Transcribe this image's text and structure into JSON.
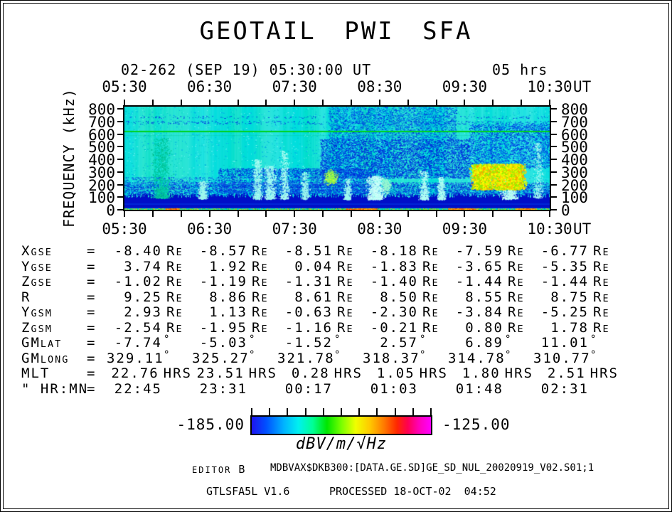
{
  "title": "GEOTAIL PWI SFA",
  "header": {
    "date_line": "02-262 (SEP 19) 05:30:00 UT",
    "duration": "05 hrs"
  },
  "axes": {
    "time_unit": "UT",
    "freq_label": "FREQUENCY (kHz)"
  },
  "colorbar": {
    "min": "-185.00",
    "max": "-125.00",
    "unit_prefix": "dBV/m/",
    "unit_radical": "√",
    "unit_sqrt": "Hz",
    "gradient": [
      [
        "#1E14F0",
        0
      ],
      [
        "#0050FF",
        8
      ],
      [
        "#00B4FF",
        18
      ],
      [
        "#00F0F0",
        26
      ],
      [
        "#00FF96",
        34
      ],
      [
        "#00E600",
        42
      ],
      [
        "#78FF00",
        50
      ],
      [
        "#F0FF00",
        58
      ],
      [
        "#FFC800",
        66
      ],
      [
        "#FF7800",
        74
      ],
      [
        "#FF2800",
        81
      ],
      [
        "#FF0050",
        87
      ],
      [
        "#FF00B4",
        93
      ],
      [
        "#FF00FF",
        100
      ]
    ]
  },
  "footer": {
    "editor_label": "EDITOR",
    "editor_value": "B",
    "file_path": "MDBVAX$DKB300:[DATA.GE.SD]GE_SD_NUL_20020919_V02.S01;1",
    "program": "GTLSFA5L V1.6",
    "processed": "PROCESSED 18-OCT-02  04:52"
  },
  "chart_data": {
    "type": "heatmap",
    "title": "GEOTAIL PWI SFA",
    "start": "02-262 (SEP 19) 05:30:00 UT",
    "span": "05 hrs",
    "x_ticks": [
      "05:30",
      "06:30",
      "07:30",
      "08:30",
      "09:30",
      "10:30"
    ],
    "x_unit": "UT",
    "x_range_hours": [
      5.5,
      10.5
    ],
    "ylabel": "FREQUENCY (kHz)",
    "y_ticks": [
      800,
      700,
      600,
      500,
      400,
      300,
      200,
      100,
      0
    ],
    "ylim": [
      0,
      816
    ],
    "colorbar_range": [
      -185.0,
      -125.0
    ],
    "colorbar_label": "dBV/m/√Hz",
    "features": [
      {
        "type": "base",
        "color": "#00DEDE"
      },
      {
        "type": "streaks",
        "green": "0,225,140",
        "light": "215,255,255"
      },
      {
        "type": "speckle",
        "t0": 5.5,
        "t1": 10.5,
        "f0": 90,
        "f1": 816,
        "density": 0.035,
        "colors": [
          "#00A8E8",
          "#70F0F0",
          "#00C8C8"
        ]
      },
      {
        "type": "speckle",
        "t0": 7.9,
        "t1": 9.4,
        "f0": 560,
        "f1": 816,
        "density": 0.42,
        "colors": [
          "#0030DC",
          "#0060F0",
          "#00A0E0"
        ]
      },
      {
        "type": "speckle",
        "t0": 5.5,
        "t1": 10.5,
        "f0": 680,
        "f1": 706,
        "density": 0.15,
        "colors": [
          "#0048E0"
        ]
      },
      {
        "type": "speckle",
        "t0": 5.5,
        "t1": 10.5,
        "f0": 726,
        "f1": 744,
        "density": 0.1,
        "colors": [
          "#0048E0"
        ]
      },
      {
        "type": "speckle",
        "t0": 5.5,
        "t1": 10.5,
        "f0": 112,
        "f1": 218,
        "density": 0.75,
        "colors": [
          "#0018CE",
          "#0022D6",
          "#0048E6",
          "#00D8D8"
        ]
      },
      {
        "type": "speckle",
        "t0": 5.5,
        "t1": 6.6,
        "f0": 180,
        "f1": 260,
        "density": 0.3,
        "colors": [
          "#0040E0",
          "#00A0E0"
        ]
      },
      {
        "type": "speckle",
        "t0": 6.6,
        "t1": 8.45,
        "f0": 130,
        "f1": 330,
        "density": 0.5,
        "colors": [
          "#0028D8",
          "#0050E8"
        ]
      },
      {
        "type": "speckle",
        "t0": 7.8,
        "t1": 9.55,
        "f0": 250,
        "f1": 560,
        "density": 0.55,
        "colors": [
          "#0022D4",
          "#004CE8"
        ]
      },
      {
        "type": "speckle",
        "t0": 9.55,
        "t1": 10.5,
        "f0": 330,
        "f1": 680,
        "density": 0.42,
        "colors": [
          "#0030DC",
          "#0060F0"
        ]
      },
      {
        "type": "darkband",
        "f0": 0,
        "f1": 112,
        "color": "#000FC8",
        "jitter": 6
      },
      {
        "type": "hline",
        "f": 45,
        "color": "rgba(0,110,255,0.5)",
        "lw": 1
      },
      {
        "type": "hline",
        "f": 140,
        "color": "rgba(0,190,255,0.3)",
        "lw": 1
      },
      {
        "type": "hline",
        "f": 165,
        "color": "rgba(120,250,255,0.3)",
        "lw": 1
      },
      {
        "type": "hline",
        "f": 205,
        "color": "rgba(140,255,255,0.33)",
        "lw": 1
      },
      {
        "type": "hline",
        "f": 243,
        "color": "rgba(140,255,255,0.25)",
        "lw": 1
      },
      {
        "type": "plume",
        "t": 5.93,
        "w": 0.1,
        "f0": 95,
        "f1": 570,
        "n": 900,
        "colors": [
          "#00C9A0",
          "#00BE8C",
          "#00D2B4"
        ]
      },
      {
        "type": "plume",
        "t": 6.42,
        "w": 0.05,
        "f0": 90,
        "f1": 230,
        "n": 300,
        "colors": [
          "#9FF8EE"
        ]
      },
      {
        "type": "plume",
        "t": 7.06,
        "w": 0.05,
        "f0": 88,
        "f1": 400,
        "n": 550,
        "colors": [
          "#B0FFF4",
          "#8CF5EC"
        ]
      },
      {
        "type": "plume",
        "t": 7.21,
        "w": 0.06,
        "f0": 88,
        "f1": 350,
        "n": 500,
        "colors": [
          "#B0FFF4",
          "#98F8F0"
        ]
      },
      {
        "type": "plume",
        "t": 7.38,
        "w": 0.05,
        "f0": 88,
        "f1": 470,
        "n": 420,
        "colors": [
          "#A8FCF2"
        ]
      },
      {
        "type": "plume",
        "t": 7.62,
        "w": 0.04,
        "f0": 88,
        "f1": 300,
        "n": 280,
        "colors": [
          "#9FF8EE"
        ]
      },
      {
        "type": "plume",
        "t": 8.12,
        "w": 0.04,
        "f0": 85,
        "f1": 250,
        "n": 280,
        "colors": [
          "#A0FAF0"
        ]
      },
      {
        "type": "plume",
        "t": 8.45,
        "w": 0.09,
        "f0": 85,
        "f1": 270,
        "n": 800,
        "colors": [
          "#B4FFF6",
          "#D0FFFA"
        ]
      },
      {
        "type": "plume",
        "t": 9.02,
        "w": 0.05,
        "f0": 85,
        "f1": 310,
        "n": 400,
        "colors": [
          "#B0FFF4"
        ]
      },
      {
        "type": "plume",
        "t": 9.22,
        "w": 0.04,
        "f0": 85,
        "f1": 260,
        "n": 320,
        "colors": [
          "#B0FFF4"
        ]
      },
      {
        "type": "plume",
        "t": 10.02,
        "w": 0.09,
        "f0": 88,
        "f1": 310,
        "n": 700,
        "colors": [
          "#B0FFF4",
          "#CFFFF8"
        ]
      },
      {
        "type": "plume",
        "t": 10.36,
        "w": 0.05,
        "f0": 95,
        "f1": 530,
        "n": 350,
        "colors": [
          "#9CF8F0"
        ]
      },
      {
        "type": "blob",
        "t": 7.92,
        "w": 0.07,
        "f": 255,
        "hf": 50,
        "n": 320,
        "colors": [
          "#78F058",
          "#AAF830",
          "#C8FF50"
        ]
      },
      {
        "type": "blob",
        "t": 8.57,
        "w": 0.05,
        "f": 195,
        "hf": 55,
        "n": 220,
        "colors": [
          "#96F8D2"
        ]
      },
      {
        "type": "cluster",
        "t0": 9.6,
        "t1": 10.2,
        "f0": 165,
        "f1": 365,
        "n": 3200,
        "colors": [
          "#FFFF00",
          "#FFF000",
          "#D8FF00",
          "#A0F000",
          "#FFD000",
          "#8CE800",
          "#FFA000"
        ]
      },
      {
        "type": "hline",
        "f": 588,
        "color": "rgba(0,200,130,0.3)",
        "lw": 1
      },
      {
        "type": "hline",
        "f": 620,
        "color": "#00D21E",
        "lw": 2
      },
      {
        "type": "bottomstrip",
        "f1": 12,
        "dot_colors": [
          "#00C850",
          "#8CE800",
          "#FFE000",
          "#00E0A0",
          "#FFB400"
        ],
        "hot": [
          {
            "t0": 5.98,
            "t1": 6.14
          },
          {
            "t0": 8.1,
            "t1": 8.46
          },
          {
            "t0": 9.3,
            "t1": 9.62
          },
          {
            "t0": 10.1,
            "t1": 10.32
          }
        ],
        "hot_colors": [
          "#FF8200",
          "#FF4600",
          "#FFD200"
        ]
      }
    ],
    "ephemeris": {
      "time_columns": [
        "05:30",
        "06:30",
        "07:30",
        "08:30",
        "09:30",
        "10:30"
      ],
      "rows": [
        {
          "label": "X",
          "sub": "GSE",
          "unit": "Re",
          "values": [
            "-8.40",
            "-8.57",
            "-8.51",
            "-8.18",
            "-7.59",
            "-6.77"
          ]
        },
        {
          "label": "Y",
          "sub": "GSE",
          "unit": "Re",
          "values": [
            "3.74",
            "1.92",
            "0.04",
            "-1.83",
            "-3.65",
            "-5.35"
          ]
        },
        {
          "label": "Z",
          "sub": "GSE",
          "unit": "Re",
          "values": [
            "-1.02",
            "-1.19",
            "-1.31",
            "-1.40",
            "-1.44",
            "-1.44"
          ]
        },
        {
          "label": "R",
          "sub": "",
          "unit": "Re",
          "values": [
            "9.25",
            "8.86",
            "8.61",
            "8.50",
            "8.55",
            "8.75"
          ]
        },
        {
          "label": "Y",
          "sub": "GSM",
          "unit": "Re",
          "values": [
            "2.93",
            "1.13",
            "-0.63",
            "-2.30",
            "-3.84",
            "-5.25"
          ]
        },
        {
          "label": "Z",
          "sub": "GSM",
          "unit": "Re",
          "values": [
            "-2.54",
            "-1.95",
            "-1.16",
            "-0.21",
            "0.80",
            "1.78"
          ]
        },
        {
          "label": "GM",
          "sub": "LAT",
          "unit": "°",
          "values": [
            "-7.74",
            "-5.03",
            "-1.52",
            "2.57",
            "6.89",
            "11.01"
          ]
        },
        {
          "label": "GM",
          "sub": "LONG",
          "unit": "°",
          "values": [
            "329.11",
            "325.27",
            "321.78",
            "318.37",
            "314.78",
            "310.77"
          ]
        },
        {
          "label": "MLT",
          "sub": "",
          "unit": "HRS",
          "values": [
            "22.76",
            "23.51",
            "0.28",
            "1.05",
            "1.80",
            "2.51"
          ]
        },
        {
          "label": "\" HR:MN",
          "sub": "",
          "unit": "",
          "values": [
            "22:45",
            "23:31",
            "00:17",
            "01:03",
            "01:48",
            "02:31"
          ]
        }
      ]
    }
  }
}
